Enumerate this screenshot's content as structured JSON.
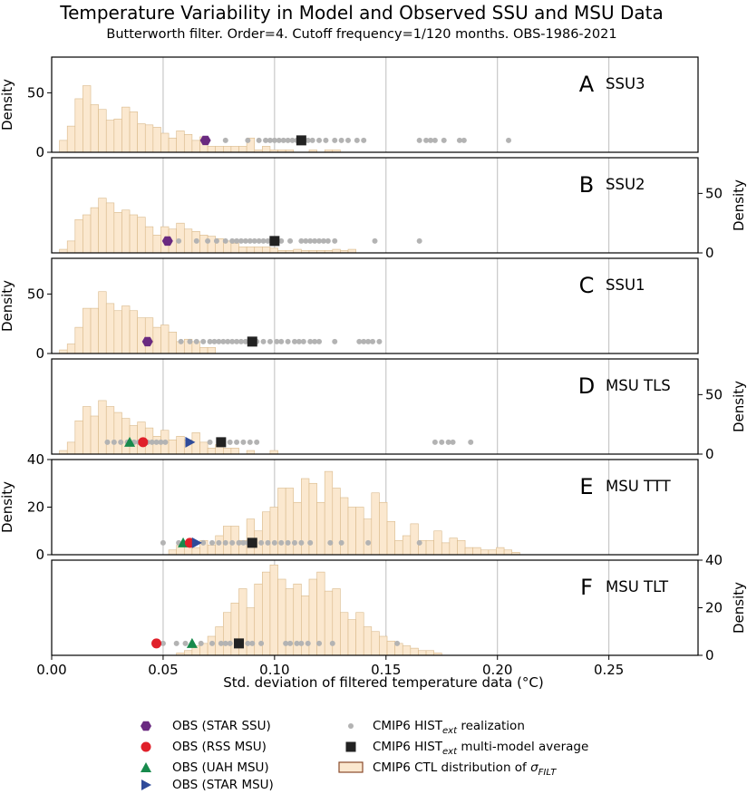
{
  "figure": {
    "title": "Temperature Variability in Model and Observed SSU and MSU Data",
    "subtitle": "Butterworth filter. Order=4. Cutoff frequency=1/120 months. OBS-1986-2021",
    "xlabel": "Std. deviation of filtered temperature data (°C)"
  },
  "colors": {
    "hist_fill": "#fbe8cf",
    "hist_edge": "#d9b98a",
    "realization": "#b3b3b3",
    "mma": "#222222",
    "star_ssu": "#6a2a80",
    "rss_msu": "#e0202a",
    "uah_msu": "#178a4c",
    "star_msu": "#2f4b9a",
    "gridline": "#bdbdbd"
  },
  "legend": {
    "left": [
      {
        "key": "star_ssu",
        "marker": "hexagon",
        "label": "OBS (STAR SSU)"
      },
      {
        "key": "rss_msu",
        "marker": "circle",
        "label": "OBS (RSS MSU)"
      },
      {
        "key": "uah_msu",
        "marker": "triangle-up",
        "label": "OBS (UAH MSU)"
      },
      {
        "key": "star_msu",
        "marker": "triangle-right",
        "label": "OBS (STAR MSU)"
      }
    ],
    "right": [
      {
        "key": "realization",
        "marker": "small-circle",
        "label_main": "CMIP6 HIST",
        "label_sub": "ext",
        "label_tail": " realization"
      },
      {
        "key": "mma",
        "marker": "square",
        "label_main": "CMIP6 HIST",
        "label_sub": "ext",
        "label_tail": " multi-model average"
      },
      {
        "key": "hist",
        "marker": "box",
        "label_main": "CMIP6 CTL distribution of ",
        "label_sigma": "σ",
        "label_sigma_sub": "FILT"
      }
    ]
  },
  "chart_data": {
    "type": "histogram+scatter",
    "xlim": [
      0.0,
      0.29
    ],
    "xticks": [
      0.0,
      0.05,
      0.1,
      0.15,
      0.2,
      0.25
    ],
    "xtick_labels": [
      "0.00",
      "0.05",
      "0.10",
      "0.15",
      "0.20",
      "0.25"
    ],
    "grid_x": true,
    "bin_width": 0.0035,
    "panels": [
      {
        "letter": "A",
        "label": "SSU3",
        "ylim": [
          0,
          80
        ],
        "yticks": [
          0,
          50
        ],
        "yaxis": "left",
        "ylabel": "Density",
        "hist": {
          "start": 0.0035,
          "heights": [
            10,
            22,
            45,
            56,
            40,
            36,
            27,
            28,
            38,
            34,
            24,
            23,
            21,
            16,
            12,
            18,
            15,
            10,
            13,
            5,
            5,
            5,
            5,
            5,
            12,
            2,
            5,
            2,
            2,
            2,
            0,
            0,
            2,
            0,
            2,
            2,
            0,
            0,
            0,
            0,
            0,
            0,
            0,
            0,
            0,
            0,
            0,
            0,
            0,
            0,
            0,
            0,
            0,
            0,
            0,
            0,
            0,
            0,
            0,
            0,
            0,
            0,
            0,
            0,
            0,
            0,
            0,
            0,
            0,
            0,
            0,
            0,
            0,
            0,
            0,
            0
          ]
        },
        "marker_y": 10,
        "realizations": [
          0.078,
          0.088,
          0.093,
          0.096,
          0.098,
          0.1,
          0.102,
          0.104,
          0.106,
          0.108,
          0.11,
          0.112,
          0.115,
          0.117,
          0.12,
          0.123,
          0.127,
          0.13,
          0.133,
          0.137,
          0.14,
          0.165,
          0.168,
          0.17,
          0.172,
          0.176,
          0.183,
          0.185,
          0.205
        ],
        "obs": [
          {
            "key": "star_ssu",
            "marker": "hexagon",
            "x": 0.069
          }
        ],
        "mma": 0.112
      },
      {
        "letter": "B",
        "label": "SSU2",
        "ylim": [
          0,
          80
        ],
        "yticks": [
          0,
          50
        ],
        "yaxis": "right",
        "ylabel": "Density",
        "hist": {
          "start": 0.0035,
          "heights": [
            3,
            10,
            28,
            32,
            38,
            46,
            42,
            34,
            36,
            32,
            30,
            22,
            15,
            22,
            20,
            25,
            20,
            18,
            15,
            14,
            12,
            10,
            8,
            5,
            5,
            5,
            5,
            4,
            2,
            2,
            3,
            2,
            2,
            2,
            2,
            3,
            2,
            3,
            0,
            0,
            0,
            0,
            0,
            0,
            0,
            0,
            0,
            0,
            0,
            0,
            0,
            0,
            0,
            0,
            0,
            0,
            0,
            0,
            0,
            0,
            0,
            0,
            0,
            0,
            0,
            0,
            0,
            0,
            0,
            0,
            0,
            0,
            0,
            0,
            0,
            0
          ]
        },
        "marker_y": 10,
        "realizations": [
          0.057,
          0.065,
          0.07,
          0.074,
          0.078,
          0.081,
          0.083,
          0.085,
          0.087,
          0.089,
          0.091,
          0.093,
          0.095,
          0.097,
          0.099,
          0.101,
          0.103,
          0.107,
          0.112,
          0.114,
          0.116,
          0.118,
          0.12,
          0.122,
          0.124,
          0.127,
          0.145,
          0.165
        ],
        "obs": [
          {
            "key": "star_ssu",
            "marker": "hexagon",
            "x": 0.052
          }
        ],
        "mma": 0.1
      },
      {
        "letter": "C",
        "label": "SSU1",
        "ylim": [
          0,
          80
        ],
        "yticks": [
          0,
          50
        ],
        "yaxis": "left",
        "ylabel": "Density",
        "hist": {
          "start": 0.0035,
          "heights": [
            3,
            8,
            22,
            38,
            38,
            52,
            42,
            36,
            40,
            36,
            30,
            30,
            22,
            24,
            18,
            10,
            12,
            10,
            5,
            5,
            0,
            0,
            0,
            0,
            0,
            0,
            0,
            0,
            0,
            0,
            0,
            0,
            0,
            0,
            0,
            0,
            0,
            0,
            0,
            0,
            0,
            0,
            0,
            0,
            0,
            0,
            0,
            0,
            0,
            0,
            0,
            0,
            0,
            0,
            0,
            0,
            0,
            0,
            0,
            0,
            0,
            0,
            0,
            0,
            0,
            0,
            0,
            0,
            0,
            0,
            0,
            0,
            0,
            0,
            0,
            0
          ]
        },
        "marker_y": 10,
        "realizations": [
          0.058,
          0.062,
          0.065,
          0.068,
          0.071,
          0.073,
          0.075,
          0.077,
          0.079,
          0.081,
          0.083,
          0.085,
          0.087,
          0.089,
          0.092,
          0.095,
          0.098,
          0.101,
          0.103,
          0.106,
          0.109,
          0.111,
          0.113,
          0.116,
          0.118,
          0.12,
          0.127,
          0.138,
          0.14,
          0.142,
          0.144,
          0.147
        ],
        "obs": [
          {
            "key": "star_ssu",
            "marker": "hexagon",
            "x": 0.043
          }
        ],
        "mma": 0.09
      },
      {
        "letter": "D",
        "label": "MSU TLS",
        "ylim": [
          0,
          80
        ],
        "yticks": [
          0,
          50
        ],
        "yaxis": "right",
        "ylabel": "Density",
        "hist": {
          "start": 0.0035,
          "heights": [
            3,
            10,
            28,
            40,
            32,
            45,
            40,
            35,
            30,
            24,
            27,
            22,
            15,
            20,
            12,
            15,
            12,
            18,
            10,
            5,
            8,
            5,
            5,
            0,
            3,
            0,
            0,
            3,
            0,
            0,
            0,
            0,
            0,
            0,
            0,
            0,
            0,
            0,
            0,
            0,
            0,
            0,
            0,
            0,
            0,
            0,
            0,
            0,
            0,
            0,
            0,
            0,
            0,
            0,
            0,
            0,
            0,
            0,
            0,
            0,
            0,
            0,
            0,
            0,
            0,
            0,
            0,
            0,
            0,
            0,
            0,
            0,
            0,
            0,
            0,
            0
          ]
        },
        "marker_y": 10,
        "realizations": [
          0.025,
          0.028,
          0.031,
          0.034,
          0.037,
          0.039,
          0.041,
          0.043,
          0.045,
          0.047,
          0.049,
          0.051,
          0.071,
          0.075,
          0.08,
          0.083,
          0.086,
          0.089,
          0.092,
          0.172,
          0.175,
          0.178,
          0.18,
          0.188
        ],
        "obs": [
          {
            "key": "uah_msu",
            "marker": "triangle-up",
            "x": 0.035
          },
          {
            "key": "rss_msu",
            "marker": "circle",
            "x": 0.041
          },
          {
            "key": "star_msu",
            "marker": "triangle-right",
            "x": 0.062
          }
        ],
        "mma": 0.076
      },
      {
        "letter": "E",
        "label": "MSU TTT",
        "ylim": [
          0,
          40
        ],
        "yticks": [
          0,
          20,
          40
        ],
        "yaxis": "left",
        "ylabel": "Density",
        "hist": {
          "start": 0.0035,
          "heights": [
            0,
            0,
            0,
            0,
            0,
            0,
            0,
            0,
            0,
            0,
            0,
            0,
            0,
            0,
            2,
            4,
            4,
            3,
            6,
            4,
            8,
            12,
            12,
            6,
            15,
            10,
            18,
            20,
            28,
            28,
            22,
            32,
            30,
            22,
            35,
            28,
            24,
            20,
            20,
            15,
            26,
            22,
            14,
            6,
            8,
            13,
            6,
            6,
            10,
            5,
            7,
            6,
            3,
            3,
            2,
            2,
            3,
            2,
            1,
            0,
            0,
            0,
            0,
            0,
            0,
            0,
            0,
            0,
            0,
            0,
            0,
            0,
            0,
            0,
            0,
            0
          ]
        },
        "marker_y": 5,
        "realizations": [
          0.05,
          0.057,
          0.063,
          0.068,
          0.072,
          0.075,
          0.078,
          0.081,
          0.084,
          0.086,
          0.088,
          0.091,
          0.094,
          0.097,
          0.1,
          0.103,
          0.106,
          0.109,
          0.112,
          0.116,
          0.125,
          0.13,
          0.142,
          0.165
        ],
        "obs": [
          {
            "key": "uah_msu",
            "marker": "triangle-up",
            "x": 0.059
          },
          {
            "key": "rss_msu",
            "marker": "circle",
            "x": 0.062
          },
          {
            "key": "star_msu",
            "marker": "triangle-right",
            "x": 0.065
          }
        ],
        "mma": 0.09
      },
      {
        "letter": "F",
        "label": "MSU TLT",
        "ylim": [
          0,
          40
        ],
        "yticks": [
          0,
          20,
          40
        ],
        "yaxis": "right",
        "ylabel": "Density",
        "hist": {
          "start": 0.0035,
          "heights": [
            0,
            0,
            0,
            0,
            0,
            0,
            0,
            0,
            0,
            0,
            0,
            0,
            0,
            0,
            0,
            1,
            2,
            4,
            5,
            8,
            12,
            18,
            22,
            28,
            20,
            30,
            35,
            38,
            32,
            28,
            30,
            25,
            32,
            35,
            27,
            28,
            18,
            15,
            18,
            12,
            10,
            8,
            6,
            5,
            4,
            3,
            2,
            2,
            1,
            0,
            0,
            0,
            0,
            0,
            0,
            0,
            0,
            0,
            0,
            0,
            0,
            0,
            0,
            0,
            0,
            0,
            0,
            0,
            0,
            0,
            0,
            0,
            0,
            0,
            0,
            0
          ]
        },
        "marker_y": 5,
        "realizations": [
          0.05,
          0.056,
          0.06,
          0.067,
          0.072,
          0.076,
          0.078,
          0.08,
          0.083,
          0.085,
          0.088,
          0.09,
          0.094,
          0.105,
          0.107,
          0.11,
          0.112,
          0.115,
          0.12,
          0.126,
          0.155
        ],
        "obs": [
          {
            "key": "rss_msu",
            "marker": "circle",
            "x": 0.047
          },
          {
            "key": "uah_msu",
            "marker": "triangle-up",
            "x": 0.063
          }
        ],
        "mma": 0.084
      }
    ]
  }
}
